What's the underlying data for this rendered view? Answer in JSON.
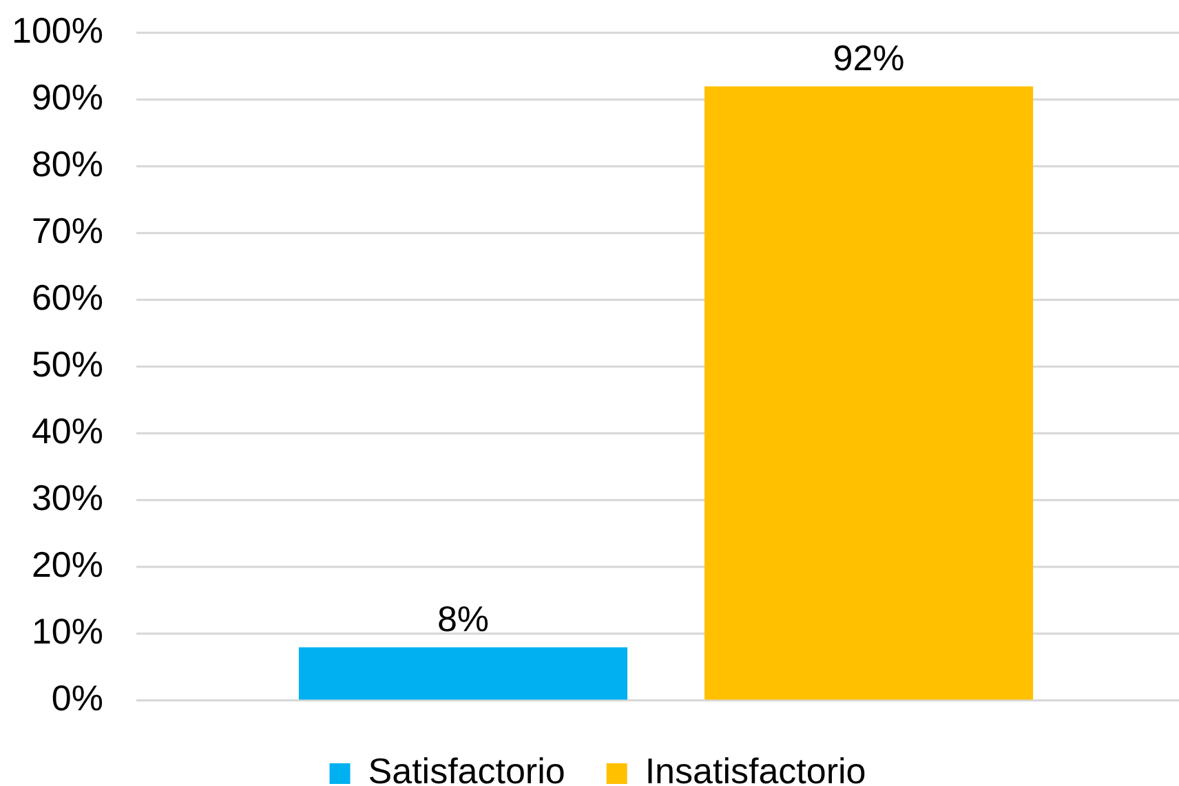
{
  "chart_data": {
    "type": "bar",
    "categories": [
      null
    ],
    "series": [
      {
        "name": "Satisfactorio",
        "color": "#00b0f0",
        "values": [
          8
        ],
        "value_labels": [
          "8%"
        ]
      },
      {
        "name": "Insatisfactorio",
        "color": "#ffc000",
        "values": [
          92
        ],
        "value_labels": [
          "92%"
        ]
      }
    ],
    "ylim": [
      0,
      100
    ],
    "yticks": [
      {
        "value": 0,
        "label": "0%"
      },
      {
        "value": 10,
        "label": "10%"
      },
      {
        "value": 20,
        "label": "20%"
      },
      {
        "value": 30,
        "label": "30%"
      },
      {
        "value": 40,
        "label": "40%"
      },
      {
        "value": 50,
        "label": "50%"
      },
      {
        "value": 60,
        "label": "60%"
      },
      {
        "value": 70,
        "label": "70%"
      },
      {
        "value": 80,
        "label": "80%"
      },
      {
        "value": 90,
        "label": "90%"
      },
      {
        "value": 100,
        "label": "100%"
      }
    ],
    "grid": "y",
    "legend": "bottom",
    "tick_labels": "y"
  }
}
